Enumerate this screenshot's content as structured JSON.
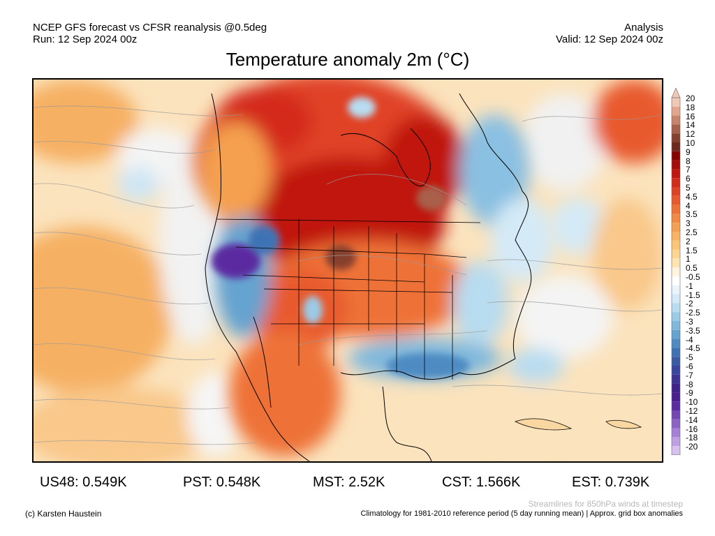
{
  "header": {
    "line1_left": "NCEP GFS forecast vs CFSR reanalysis @0.5deg",
    "line2_left": "Run: 12 Sep 2024 00z",
    "line1_right": "Analysis",
    "line2_right": "Valid: 12 Sep 2024 00z"
  },
  "title": "Temperature anomaly 2m (°C)",
  "colorbar": {
    "labels": [
      "20",
      "18",
      "16",
      "14",
      "12",
      "10",
      "9",
      "8",
      "7",
      "6",
      "5",
      "4.5",
      "4",
      "3.5",
      "3",
      "2.5",
      "2",
      "1.5",
      "1",
      "0.5",
      "-0.5",
      "-1",
      "-1.5",
      "-2",
      "-2.5",
      "-3",
      "-3.5",
      "-4",
      "-4.5",
      "-5",
      "-6",
      "-7",
      "-8",
      "-9",
      "-10",
      "-12",
      "-14",
      "-16",
      "-18",
      "-20"
    ],
    "colors": [
      "#f0c8b8",
      "#e3a58c",
      "#c9846c",
      "#a8604c",
      "#86402f",
      "#6e2a1e",
      "#880000",
      "#a60c08",
      "#c0180e",
      "#d42c1a",
      "#e04226",
      "#e85a2e",
      "#ee7238",
      "#f28a44",
      "#f5a050",
      "#f8b462",
      "#fac676",
      "#fcd690",
      "#fde4b0",
      "#fff4e0",
      "#ffffff",
      "#eaf4fb",
      "#d4eaf7",
      "#b8dcf0",
      "#9ccbe7",
      "#80b8dc",
      "#65a3d0",
      "#4d8bc2",
      "#3d73b4",
      "#3a5aa6",
      "#3a45a0",
      "#3c3395",
      "#40228a",
      "#4a1e8e",
      "#5c2aa0",
      "#7446b4",
      "#8c62c6",
      "#a680d6",
      "#bea0e2",
      "#d6c0ee"
    ]
  },
  "stats": [
    {
      "label": "US48: 0.549K"
    },
    {
      "label": "PST: 0.548K"
    },
    {
      "label": "MST: 2.52K"
    },
    {
      "label": "CST: 1.566K"
    },
    {
      "label": "EST: 0.739K"
    }
  ],
  "footer": {
    "copyright": "(c) Karsten Haustein",
    "streamlines": "Streamlines for 850hPa winds at timestep",
    "climatology": "Climatology for 1981-2010 reference period (5 day running mean) | Approx. grid box anomalies"
  }
}
